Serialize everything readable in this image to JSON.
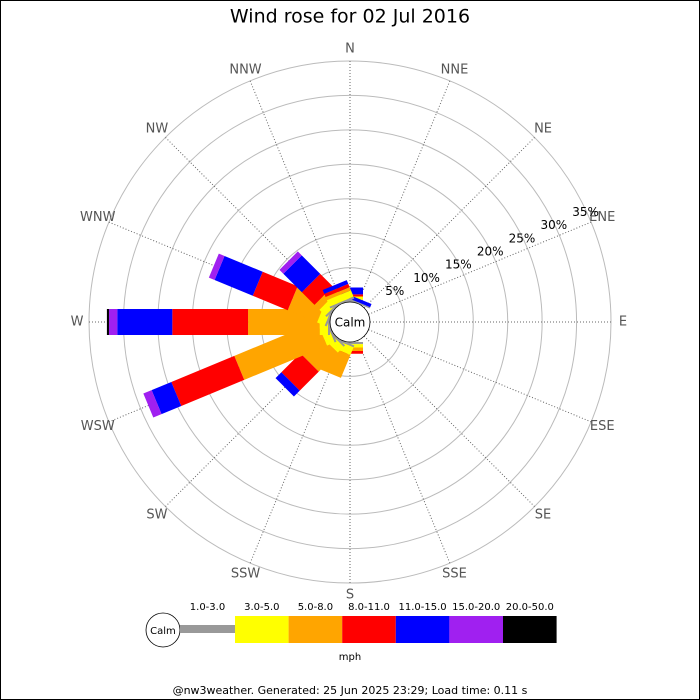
{
  "chart_data": {
    "type": "wind_rose",
    "title": "Wind rose for 02 Jul 2016",
    "categories": [
      "N",
      "NNE",
      "NE",
      "ENE",
      "E",
      "ESE",
      "SE",
      "SSE",
      "S",
      "SSW",
      "SW",
      "WSW",
      "W",
      "WNW",
      "NW",
      "NNW"
    ],
    "rlim": [
      0,
      35
    ],
    "rticks": [
      {
        "value": 5,
        "label": "5%"
      },
      {
        "value": 10,
        "label": "10%"
      },
      {
        "value": 15,
        "label": "15%"
      },
      {
        "value": 20,
        "label": "20%"
      },
      {
        "value": 25,
        "label": "25%"
      },
      {
        "value": 30,
        "label": "30%"
      },
      {
        "value": 35,
        "label": "35%"
      }
    ],
    "calm_label": "Calm",
    "units": "mph",
    "series": [
      {
        "name": "1.0-3.0",
        "color": "#999999",
        "values": [
          0.3,
          0.2,
          0,
          0,
          0,
          0,
          0,
          0,
          0.3,
          0.3,
          0.3,
          0.3,
          0.3,
          0.3,
          0.3,
          0.3
        ]
      },
      {
        "name": "3.0-5.0",
        "color": "#ffff00",
        "values": [
          0.5,
          0,
          0,
          0,
          0,
          0,
          0,
          0,
          0.5,
          1.2,
          1.2,
          1.2,
          1.2,
          1.2,
          1.2,
          1.0
        ]
      },
      {
        "name": "5.0-8.0",
        "color": "#ffa500",
        "values": [
          0,
          0,
          0,
          0,
          0,
          0,
          0,
          0,
          0.5,
          3.6,
          3.9,
          13.0,
          10.4,
          4.6,
          1.0,
          0.5
        ]
      },
      {
        "name": "8.0-11.0",
        "color": "#ff0000",
        "values": [
          0.3,
          0,
          0,
          0,
          0,
          0,
          0,
          0,
          0.4,
          0,
          3.9,
          9.9,
          11.0,
          5.5,
          2.6,
          0.5
        ]
      },
      {
        "name": "11.0-15.0",
        "color": "#0000ff",
        "values": [
          1.0,
          0.5,
          0,
          0,
          0,
          0,
          0,
          0,
          0,
          0,
          1.2,
          3.1,
          8.0,
          6.0,
          3.8,
          0.6
        ]
      },
      {
        "name": "15.0-20.0",
        "color": "#a020f0",
        "values": [
          0,
          0,
          0,
          0,
          0,
          0,
          0,
          0,
          0,
          0,
          0,
          1.3,
          1.2,
          0.9,
          0.8,
          0
        ]
      },
      {
        "name": "20.0-50.0",
        "color": "#000000",
        "values": [
          0,
          0,
          0,
          0,
          0,
          0,
          0,
          0,
          0,
          0,
          0,
          0,
          0.3,
          0,
          0,
          0
        ]
      }
    ],
    "footer": "@nw3weather. Generated: 25 Jun 2025 23:29; Load time: 0.11 s"
  }
}
